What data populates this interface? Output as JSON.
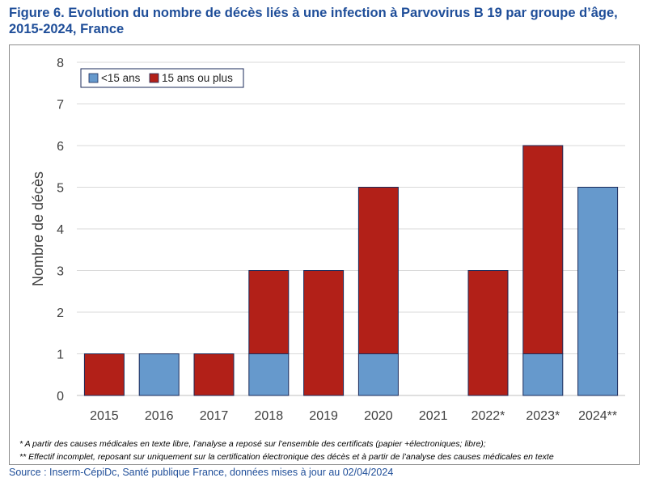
{
  "figure": {
    "title_line1": "Figure 6. Evolution du nombre de décès liés à une infection à Parvovirus B 19 par groupe d’âge,",
    "title_line2": "2015-2024, France"
  },
  "notes": [
    "* A partir des causes médicales en texte libre, l’analyse a reposé sur l’ensemble des certificats (papier +électroniques; libre);",
    "** Effectif incomplet, reposant sur uniquement sur la certification électronique des décès et à partir de l’analyse des causes médicales en texte"
  ],
  "source": "Source : Inserm-CépiDc, Santé publique France, données mises à jour au 02/04/2024",
  "chart_data": {
    "type": "bar",
    "stacked": true,
    "categories": [
      "2015",
      "2016",
      "2017",
      "2018",
      "2019",
      "2020",
      "2021",
      "2022*",
      "2023*",
      "2024**"
    ],
    "series": [
      {
        "name": "<15 ans",
        "color": "#6699cc",
        "values": [
          0,
          1,
          0,
          1,
          0,
          1,
          0,
          0,
          1,
          5
        ]
      },
      {
        "name": "15 ans ou plus",
        "color": "#b22018",
        "values": [
          1,
          0,
          1,
          2,
          3,
          4,
          0,
          3,
          5,
          0
        ]
      }
    ],
    "ylabel": "Nombre de décès",
    "xlabel": "",
    "ylim": [
      0,
      8
    ],
    "yticks": [
      "0",
      "1",
      "2",
      "3",
      "4",
      "5",
      "6",
      "7",
      "8"
    ],
    "grid": true,
    "legend_position": "top-left"
  }
}
